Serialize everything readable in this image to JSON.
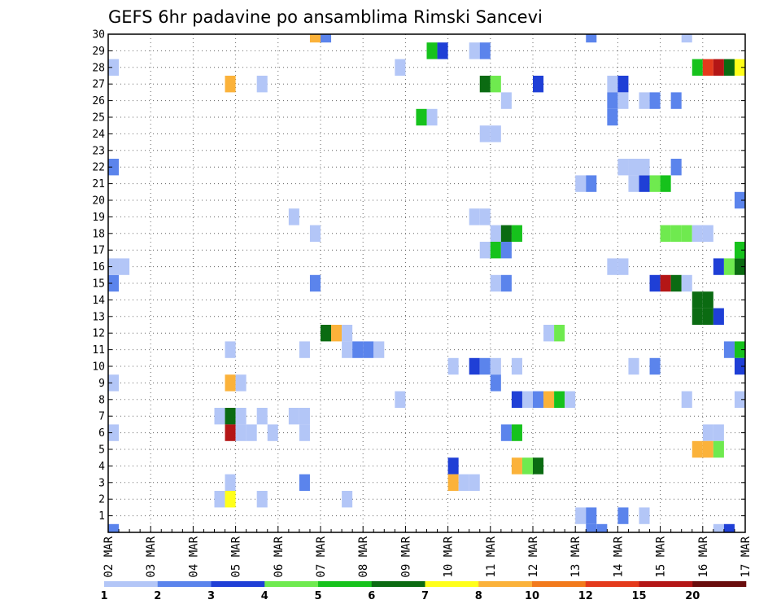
{
  "chart_data": {
    "type": "heatmap",
    "title": "GEFS 6hr padavine po ansamblima Rimski Sancevi",
    "y_ticks": [
      "1",
      "2",
      "3",
      "4",
      "5",
      "6",
      "7",
      "8",
      "9",
      "10",
      "11",
      "12",
      "13",
      "14",
      "15",
      "16",
      "17",
      "18",
      "19",
      "20",
      "21",
      "22",
      "23",
      "24",
      "25",
      "26",
      "27",
      "28",
      "29",
      "30"
    ],
    "x_ticks": [
      "02 MAR",
      "03 MAR",
      "04 MAR",
      "05 MAR",
      "06 MAR",
      "07 MAR",
      "08 MAR",
      "09 MAR",
      "10 MAR",
      "11 MAR",
      "12 MAR",
      "13 MAR",
      "14 MAR",
      "15 MAR",
      "16 MAR",
      "17 MAR"
    ],
    "x_range": [
      "02 MAR 00z",
      "17 MAR 00z"
    ],
    "y_range": [
      0,
      30
    ],
    "time_step": "6hr",
    "grid": true,
    "legend_position": "bottom",
    "legend": {
      "colors": [
        "#b3c6f7",
        "#5b84ec",
        "#1f3fd6",
        "#6fea4f",
        "#16c21c",
        "#0b6b12",
        "#ffff1a",
        "#fbb23a",
        "#f27a1c",
        "#e43a1c",
        "#b41616",
        "#6a0d0d"
      ],
      "labels": [
        "1",
        "2",
        "3",
        "4",
        "5",
        "6",
        "7",
        "8",
        "10",
        "12",
        "15",
        "20"
      ]
    },
    "cells": [
      [
        0.0,
        0,
        2
      ],
      [
        0.0,
        6,
        1
      ],
      [
        0.0,
        9,
        1
      ],
      [
        0.0,
        15,
        2
      ],
      [
        0.0,
        16,
        1
      ],
      [
        0.25,
        16,
        1
      ],
      [
        0.0,
        22,
        2
      ],
      [
        0.0,
        28,
        1
      ],
      [
        2.5,
        2,
        1
      ],
      [
        2.75,
        2,
        7
      ],
      [
        2.5,
        7,
        1
      ],
      [
        2.75,
        7,
        6
      ],
      [
        2.75,
        6,
        11
      ],
      [
        3.0,
        6,
        1
      ],
      [
        3.25,
        6,
        1
      ],
      [
        3.0,
        7,
        1
      ],
      [
        2.75,
        9,
        8
      ],
      [
        3.0,
        9,
        1
      ],
      [
        2.75,
        11,
        1
      ],
      [
        2.75,
        3,
        1
      ],
      [
        2.75,
        27,
        8
      ],
      [
        3.5,
        2,
        1
      ],
      [
        3.5,
        7,
        1
      ],
      [
        3.75,
        6,
        1
      ],
      [
        3.5,
        27,
        1
      ],
      [
        4.25,
        19,
        1
      ],
      [
        4.25,
        7,
        1
      ],
      [
        4.5,
        7,
        1
      ],
      [
        4.5,
        6,
        1
      ],
      [
        4.5,
        11,
        1
      ],
      [
        4.5,
        3,
        2
      ],
      [
        4.75,
        15,
        2
      ],
      [
        4.75,
        18,
        1
      ],
      [
        4.75,
        30,
        8
      ],
      [
        5.0,
        30,
        2
      ],
      [
        5.0,
        12,
        6
      ],
      [
        5.25,
        12,
        8
      ],
      [
        5.5,
        12,
        1
      ],
      [
        5.5,
        11,
        1
      ],
      [
        5.75,
        11,
        2
      ],
      [
        6.0,
        11,
        2
      ],
      [
        6.25,
        11,
        1
      ],
      [
        5.5,
        2,
        1
      ],
      [
        6.75,
        28,
        1
      ],
      [
        6.75,
        8,
        1
      ],
      [
        7.25,
        25,
        5
      ],
      [
        7.5,
        25,
        1
      ],
      [
        7.5,
        29,
        5
      ],
      [
        7.75,
        29,
        3
      ],
      [
        8.0,
        10,
        1
      ],
      [
        8.0,
        4,
        3
      ],
      [
        8.0,
        3,
        8
      ],
      [
        8.25,
        3,
        1
      ],
      [
        8.5,
        3,
        1
      ],
      [
        8.5,
        29,
        1
      ],
      [
        8.75,
        29,
        2
      ],
      [
        8.5,
        19,
        1
      ],
      [
        8.75,
        19,
        1
      ],
      [
        8.5,
        10,
        3
      ],
      [
        8.75,
        10,
        2
      ],
      [
        9.0,
        10,
        1
      ],
      [
        9.0,
        9,
        2
      ],
      [
        8.75,
        27,
        6
      ],
      [
        9.0,
        27,
        4
      ],
      [
        8.75,
        24,
        1
      ],
      [
        9.0,
        24,
        1
      ],
      [
        8.75,
        17,
        1
      ],
      [
        9.0,
        17,
        5
      ],
      [
        9.25,
        17,
        2
      ],
      [
        9.0,
        18,
        1
      ],
      [
        9.25,
        18,
        6
      ],
      [
        9.5,
        18,
        5
      ],
      [
        9.0,
        15,
        1
      ],
      [
        9.25,
        15,
        2
      ],
      [
        9.25,
        26,
        1
      ],
      [
        9.25,
        6,
        2
      ],
      [
        9.5,
        6,
        5
      ],
      [
        9.5,
        10,
        1
      ],
      [
        9.5,
        8,
        3
      ],
      [
        9.75,
        8,
        1
      ],
      [
        10.0,
        8,
        2
      ],
      [
        10.25,
        8,
        8
      ],
      [
        10.5,
        8,
        5
      ],
      [
        10.75,
        8,
        1
      ],
      [
        9.5,
        4,
        8
      ],
      [
        9.75,
        4,
        4
      ],
      [
        10.0,
        4,
        6
      ],
      [
        10.25,
        12,
        1
      ],
      [
        10.5,
        12,
        4
      ],
      [
        10.0,
        27,
        3
      ],
      [
        11.0,
        1,
        1
      ],
      [
        11.25,
        1,
        2
      ],
      [
        11.0,
        21,
        1
      ],
      [
        11.25,
        21,
        2
      ],
      [
        11.25,
        0,
        2
      ],
      [
        11.5,
        0,
        2
      ],
      [
        11.25,
        30,
        2
      ],
      [
        11.75,
        27,
        1
      ],
      [
        12.0,
        27,
        3
      ],
      [
        11.75,
        26,
        2
      ],
      [
        12.0,
        26,
        1
      ],
      [
        11.75,
        25,
        2
      ],
      [
        11.75,
        16,
        1
      ],
      [
        12.0,
        16,
        1
      ],
      [
        12.0,
        22,
        1
      ],
      [
        12.25,
        22,
        1
      ],
      [
        12.25,
        21,
        1
      ],
      [
        12.5,
        21,
        3
      ],
      [
        12.75,
        21,
        4
      ],
      [
        12.5,
        22,
        1
      ],
      [
        12.5,
        26,
        1
      ],
      [
        12.75,
        26,
        2
      ],
      [
        12.0,
        1,
        2
      ],
      [
        12.5,
        1,
        1
      ],
      [
        12.25,
        10,
        1
      ],
      [
        13.0,
        21,
        5
      ],
      [
        13.25,
        22,
        2
      ],
      [
        13.25,
        26,
        2
      ],
      [
        13.0,
        18,
        4
      ],
      [
        13.25,
        18,
        4
      ],
      [
        13.5,
        18,
        4
      ],
      [
        13.75,
        18,
        1
      ],
      [
        14.0,
        18,
        1
      ],
      [
        12.75,
        15,
        3
      ],
      [
        13.0,
        15,
        11
      ],
      [
        13.25,
        15,
        6
      ],
      [
        13.5,
        15,
        1
      ],
      [
        12.75,
        10,
        2
      ],
      [
        13.75,
        14,
        6
      ],
      [
        14.0,
        14,
        6
      ],
      [
        13.75,
        13,
        6
      ],
      [
        14.0,
        13,
        6
      ],
      [
        14.25,
        13,
        3
      ],
      [
        14.25,
        16,
        3
      ],
      [
        14.5,
        16,
        4
      ],
      [
        14.75,
        16,
        6
      ],
      [
        14.75,
        17,
        5
      ],
      [
        14.75,
        11,
        5
      ],
      [
        14.75,
        10,
        3
      ],
      [
        14.5,
        11,
        2
      ],
      [
        13.75,
        28,
        5
      ],
      [
        14.0,
        28,
        10
      ],
      [
        14.25,
        28,
        11
      ],
      [
        14.5,
        28,
        6
      ],
      [
        14.75,
        28,
        7
      ],
      [
        13.5,
        8,
        1
      ],
      [
        14.75,
        8,
        1
      ],
      [
        14.0,
        6,
        1
      ],
      [
        14.25,
        6,
        1
      ],
      [
        13.75,
        5,
        8
      ],
      [
        14.0,
        5,
        8
      ],
      [
        14.25,
        5,
        4
      ],
      [
        13.5,
        30,
        1
      ],
      [
        14.25,
        0,
        1
      ],
      [
        14.5,
        0,
        3
      ],
      [
        14.75,
        20,
        2
      ]
    ]
  }
}
